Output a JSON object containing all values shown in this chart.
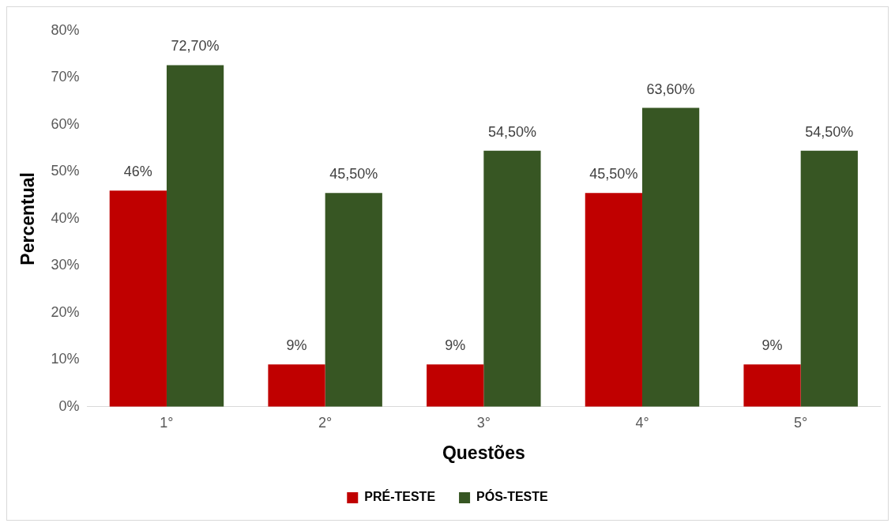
{
  "chart_data": {
    "type": "bar",
    "xlabel": "Questões",
    "ylabel": "Percentual",
    "categories": [
      "1°",
      "2°",
      "3°",
      "4°",
      "5°"
    ],
    "series": [
      {
        "name": "PRÉ-TESTE",
        "color": "#c00000",
        "values": [
          46,
          9,
          9,
          45.5,
          9
        ],
        "value_labels": [
          "46%",
          "9%",
          "9%",
          "45,50%",
          "9%"
        ]
      },
      {
        "name": "PÓS-TESTE",
        "color": "#375623",
        "values": [
          72.7,
          45.5,
          54.5,
          63.6,
          54.5
        ],
        "value_labels": [
          "72,70%",
          "45,50%",
          "54,50%",
          "63,60%",
          "54,50%"
        ]
      }
    ],
    "ylim": [
      0,
      80
    ],
    "yticks": [
      {
        "value": 0,
        "label": "0%"
      },
      {
        "value": 10,
        "label": "10%"
      },
      {
        "value": 20,
        "label": "20%"
      },
      {
        "value": 30,
        "label": "30%"
      },
      {
        "value": 40,
        "label": "40%"
      },
      {
        "value": 50,
        "label": "50%"
      },
      {
        "value": 60,
        "label": "60%"
      },
      {
        "value": 70,
        "label": "70%"
      },
      {
        "value": 80,
        "label": "80%"
      }
    ],
    "grid": false,
    "legend": "bottom"
  }
}
